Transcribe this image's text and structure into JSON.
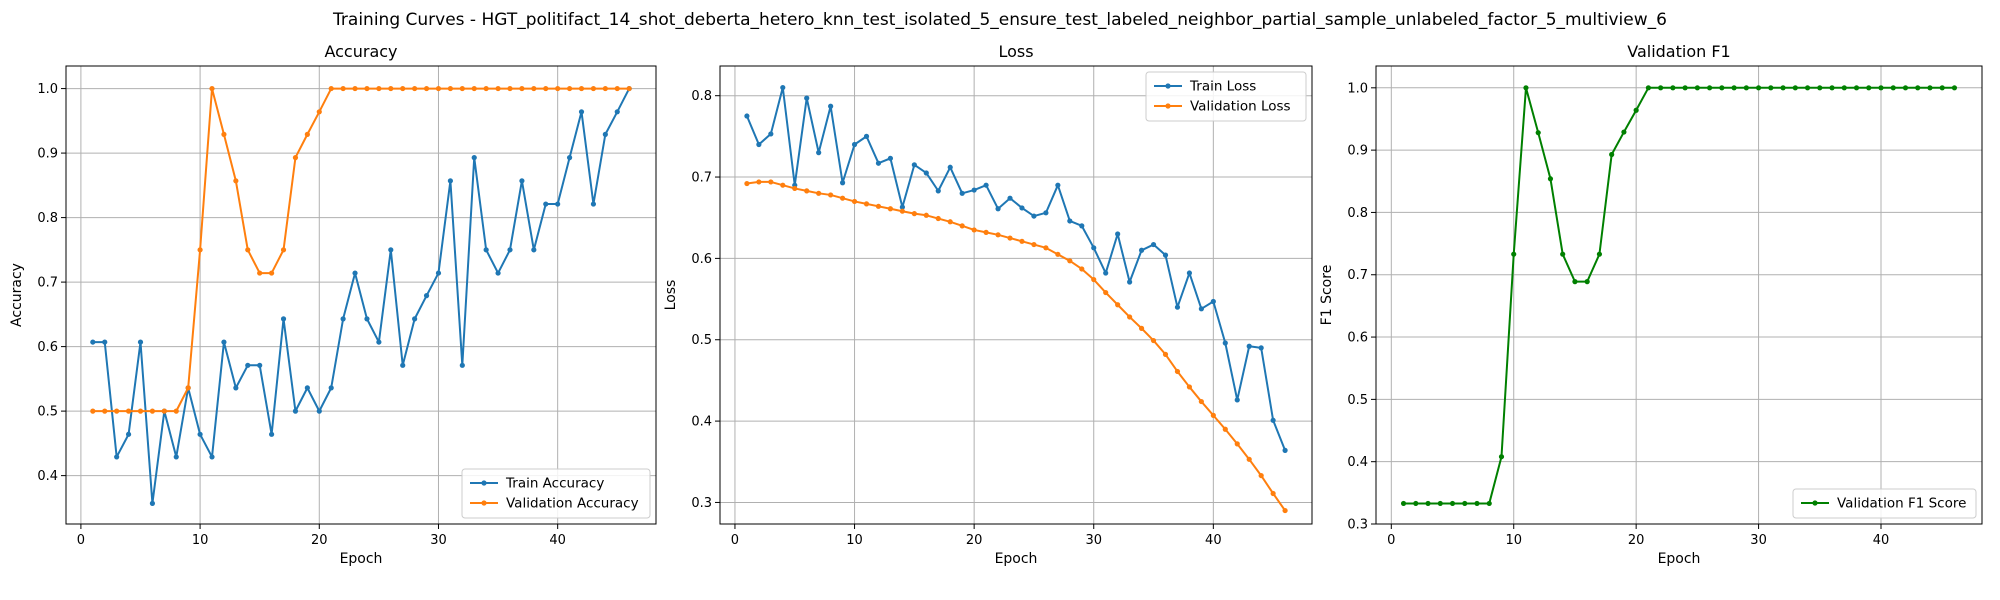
{
  "figure": {
    "suptitle": "Training Curves - HGT_politifact_14_shot_deberta_hetero_knn_test_isolated_5_ensure_test_labeled_neighbor_partial_sample_unlabeled_factor_5_multiview_6"
  },
  "chart_data": [
    {
      "type": "line",
      "title": "Accuracy",
      "xlabel": "Epoch",
      "ylabel": "Accuracy",
      "xlim": [
        -1.25,
        48.25
      ],
      "ylim": [
        0.325,
        1.035
      ],
      "xticks": [
        0,
        10,
        20,
        30,
        40
      ],
      "yticks": [
        0.4,
        0.5,
        0.6,
        0.7,
        0.8,
        0.9,
        1.0
      ],
      "ytick_labels": [
        "0.4",
        "0.5",
        "0.6",
        "0.7",
        "0.8",
        "0.9",
        "1.0"
      ],
      "grid": true,
      "legend_loc": "lower-right",
      "x": [
        1,
        2,
        3,
        4,
        5,
        6,
        7,
        8,
        9,
        10,
        11,
        12,
        13,
        14,
        15,
        16,
        17,
        18,
        19,
        20,
        21,
        22,
        23,
        24,
        25,
        26,
        27,
        28,
        29,
        30,
        31,
        32,
        33,
        34,
        35,
        36,
        37,
        38,
        39,
        40,
        41,
        42,
        43,
        44,
        45,
        46
      ],
      "series": [
        {
          "name": "Train Accuracy",
          "color": "#1f77b4",
          "values": [
            0.607,
            0.607,
            0.429,
            0.464,
            0.607,
            0.357,
            0.5,
            0.429,
            0.536,
            0.464,
            0.429,
            0.607,
            0.536,
            0.571,
            0.571,
            0.464,
            0.643,
            0.5,
            0.536,
            0.5,
            0.536,
            0.643,
            0.714,
            0.643,
            0.607,
            0.75,
            0.571,
            0.643,
            0.679,
            0.714,
            0.857,
            0.571,
            0.893,
            0.75,
            0.714,
            0.75,
            0.857,
            0.75,
            0.821,
            0.821,
            0.893,
            0.964,
            0.821,
            0.929,
            0.964,
            1.0
          ]
        },
        {
          "name": "Validation Accuracy",
          "color": "#ff7f0e",
          "values": [
            0.5,
            0.5,
            0.5,
            0.5,
            0.5,
            0.5,
            0.5,
            0.5,
            0.536,
            0.75,
            1.0,
            0.929,
            0.857,
            0.75,
            0.714,
            0.714,
            0.75,
            0.893,
            0.929,
            0.964,
            1.0,
            1.0,
            1.0,
            1.0,
            1.0,
            1.0,
            1.0,
            1.0,
            1.0,
            1.0,
            1.0,
            1.0,
            1.0,
            1.0,
            1.0,
            1.0,
            1.0,
            1.0,
            1.0,
            1.0,
            1.0,
            1.0,
            1.0,
            1.0,
            1.0,
            1.0
          ]
        }
      ]
    },
    {
      "type": "line",
      "title": "Loss",
      "xlabel": "Epoch",
      "ylabel": "Loss",
      "xlim": [
        -1.25,
        48.25
      ],
      "ylim": [
        0.2735,
        0.8365
      ],
      "xticks": [
        0,
        10,
        20,
        30,
        40
      ],
      "yticks": [
        0.3,
        0.4,
        0.5,
        0.6,
        0.7,
        0.8
      ],
      "ytick_labels": [
        "0.3",
        "0.4",
        "0.5",
        "0.6",
        "0.7",
        "0.8"
      ],
      "grid": true,
      "legend_loc": "upper-right",
      "x": [
        1,
        2,
        3,
        4,
        5,
        6,
        7,
        8,
        9,
        10,
        11,
        12,
        13,
        14,
        15,
        16,
        17,
        18,
        19,
        20,
        21,
        22,
        23,
        24,
        25,
        26,
        27,
        28,
        29,
        30,
        31,
        32,
        33,
        34,
        35,
        36,
        37,
        38,
        39,
        40,
        41,
        42,
        43,
        44,
        45,
        46
      ],
      "series": [
        {
          "name": "Train Loss",
          "color": "#1f77b4",
          "values": [
            0.775,
            0.74,
            0.753,
            0.81,
            0.69,
            0.797,
            0.73,
            0.787,
            0.693,
            0.74,
            0.75,
            0.717,
            0.723,
            0.663,
            0.715,
            0.705,
            0.683,
            0.712,
            0.68,
            0.684,
            0.69,
            0.661,
            0.674,
            0.662,
            0.652,
            0.656,
            0.69,
            0.646,
            0.64,
            0.613,
            0.582,
            0.63,
            0.571,
            0.61,
            0.617,
            0.604,
            0.54,
            0.582,
            0.538,
            0.547,
            0.496,
            0.426,
            0.492,
            0.49,
            0.401,
            0.364
          ]
        },
        {
          "name": "Validation Loss",
          "color": "#ff7f0e",
          "values": [
            0.692,
            0.694,
            0.694,
            0.69,
            0.686,
            0.683,
            0.68,
            0.678,
            0.674,
            0.67,
            0.667,
            0.664,
            0.661,
            0.658,
            0.655,
            0.653,
            0.649,
            0.645,
            0.64,
            0.635,
            0.632,
            0.629,
            0.625,
            0.621,
            0.617,
            0.613,
            0.605,
            0.597,
            0.587,
            0.574,
            0.558,
            0.543,
            0.528,
            0.514,
            0.499,
            0.482,
            0.461,
            0.442,
            0.424,
            0.407,
            0.39,
            0.372,
            0.353,
            0.333,
            0.311,
            0.29
          ]
        }
      ]
    },
    {
      "type": "line",
      "title": "Validation F1",
      "xlabel": "Epoch",
      "ylabel": "F1 Score",
      "xlim": [
        -1.25,
        48.25
      ],
      "ylim": [
        0.3,
        1.035
      ],
      "xticks": [
        0,
        10,
        20,
        30,
        40
      ],
      "yticks": [
        0.3,
        0.4,
        0.5,
        0.6,
        0.7,
        0.8,
        0.9,
        1.0
      ],
      "ytick_labels": [
        "0.3",
        "0.4",
        "0.5",
        "0.6",
        "0.7",
        "0.8",
        "0.9",
        "1.0"
      ],
      "grid": true,
      "legend_loc": "lower-right",
      "x": [
        1,
        2,
        3,
        4,
        5,
        6,
        7,
        8,
        9,
        10,
        11,
        12,
        13,
        14,
        15,
        16,
        17,
        18,
        19,
        20,
        21,
        22,
        23,
        24,
        25,
        26,
        27,
        28,
        29,
        30,
        31,
        32,
        33,
        34,
        35,
        36,
        37,
        38,
        39,
        40,
        41,
        42,
        43,
        44,
        45,
        46
      ],
      "series": [
        {
          "name": "Validation F1 Score",
          "color": "#008000",
          "values": [
            0.333,
            0.333,
            0.333,
            0.333,
            0.333,
            0.333,
            0.333,
            0.333,
            0.408,
            0.733,
            1.0,
            0.928,
            0.854,
            0.733,
            0.689,
            0.689,
            0.733,
            0.893,
            0.929,
            0.964,
            1.0,
            1.0,
            1.0,
            1.0,
            1.0,
            1.0,
            1.0,
            1.0,
            1.0,
            1.0,
            1.0,
            1.0,
            1.0,
            1.0,
            1.0,
            1.0,
            1.0,
            1.0,
            1.0,
            1.0,
            1.0,
            1.0,
            1.0,
            1.0,
            1.0,
            1.0
          ]
        }
      ]
    }
  ]
}
